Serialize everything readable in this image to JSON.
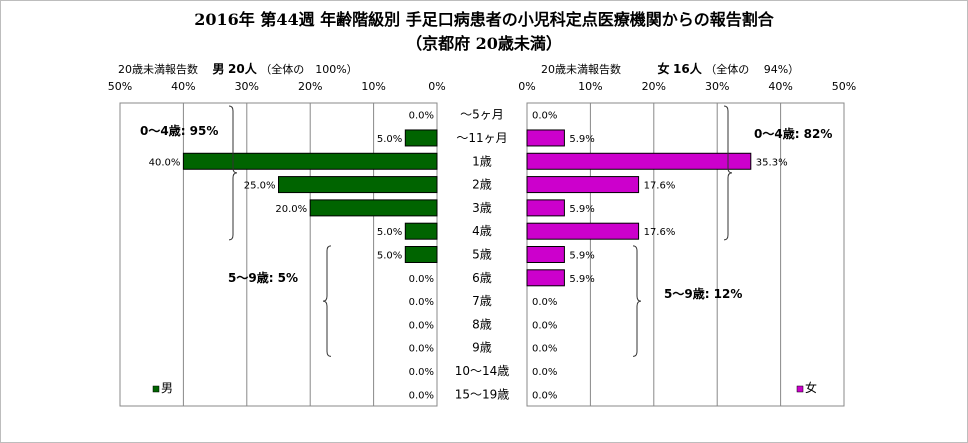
{
  "title_line1": "2016年 第44週 年齢階級別 手足口病患者の小児科定点医療機関からの報告割合",
  "title_line2": "（京都府 20歳未満）",
  "left_header": {
    "prefix": "20歳未満報告数",
    "sex": "男",
    "count": "20人",
    "ratio": "（全体の　100%）"
  },
  "right_header": {
    "prefix": "20歳未満報告数",
    "sex": "女",
    "count": "16人",
    "ratio": "（全体の　 94%）"
  },
  "chart_data": {
    "type": "bar",
    "orientation": "horizontal-population-pyramid",
    "categories": [
      "～5ヶ月",
      "～11ヶ月",
      "1歳",
      "2歳",
      "3歳",
      "4歳",
      "5歳",
      "6歳",
      "7歳",
      "8歳",
      "9歳",
      "10～14歳",
      "15～19歳"
    ],
    "axis_ticks": [
      "50%",
      "40%",
      "30%",
      "20%",
      "10%",
      "0%"
    ],
    "axis_ticks_right": [
      "0%",
      "10%",
      "20%",
      "30%",
      "40%",
      "50%"
    ],
    "xlim": [
      0,
      50
    ],
    "series": [
      {
        "name": "男",
        "color": "#006400",
        "values": [
          0.0,
          5.0,
          40.0,
          25.0,
          20.0,
          5.0,
          5.0,
          0.0,
          0.0,
          0.0,
          0.0,
          0.0,
          0.0
        ]
      },
      {
        "name": "女",
        "color": "#cc00cc",
        "values": [
          0.0,
          5.9,
          35.3,
          17.6,
          5.9,
          17.6,
          5.9,
          5.9,
          0.0,
          0.0,
          0.0,
          0.0,
          0.0
        ]
      }
    ],
    "annotations": {
      "male_0_4": "0～4歳: 95%",
      "male_5_9": "5～9歳: 5%",
      "female_0_4": "0～4歳: 82%",
      "female_5_9": "5～9歳: 12%"
    },
    "legend": {
      "male": "男",
      "female": "女"
    },
    "grid": true
  }
}
